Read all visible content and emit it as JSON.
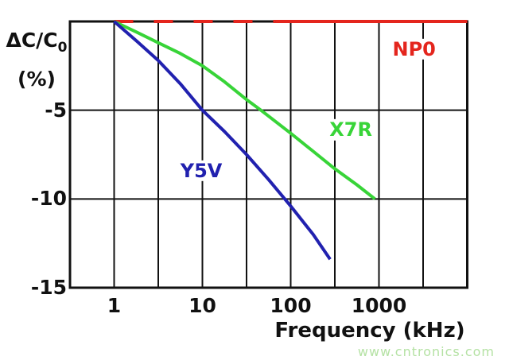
{
  "chart_data": {
    "type": "line",
    "title": "",
    "xlabel": "Frequency (kHz)",
    "ylabel_main": "ΔC/C",
    "ylabel_sub": "0",
    "ylabel_unit": "(%)",
    "x_scale": "log",
    "x_range": [
      0.3162,
      10000
    ],
    "y_range": [
      -15,
      0
    ],
    "x_ticks": [
      {
        "value": 1,
        "label": "1"
      },
      {
        "value": 10,
        "label": "10"
      },
      {
        "value": 100,
        "label": "100"
      },
      {
        "value": 1000,
        "label": "1000"
      }
    ],
    "y_ticks": [
      {
        "value": -5,
        "label": "-5"
      },
      {
        "value": -10,
        "label": "-10"
      },
      {
        "value": -15,
        "label": "-15"
      }
    ],
    "x_gridlines": [
      0.3162,
      1,
      3.162,
      10,
      31.62,
      100,
      316.2,
      1000,
      3162,
      10000
    ],
    "y_gridlines": [
      0,
      -5,
      -10,
      -15
    ],
    "grid_color": "#111111",
    "series": [
      {
        "name": "NP0",
        "color": "#e4251d",
        "width": 4,
        "label_at": [
          2500,
          -1.55
        ],
        "parts": [
          {
            "x": [
              1,
              68
            ],
            "y": [
              0,
              0
            ],
            "dash": "24 26"
          },
          {
            "x": [
              68,
              10000
            ],
            "y": [
              0,
              0
            ]
          }
        ]
      },
      {
        "name": "X7R",
        "color": "#38d438",
        "width": 4,
        "label_at": [
          480,
          -6.1
        ],
        "parts": [
          {
            "x": [
              1,
              1.8,
              3.16,
              5.6,
              10,
              17.8,
              31.6,
              46,
              100,
              178,
              316,
              562,
              900
            ],
            "y": [
              0,
              -0.6,
              -1.2,
              -1.8,
              -2.5,
              -3.4,
              -4.4,
              -5.0,
              -6.3,
              -7.3,
              -8.3,
              -9.2,
              -10.0
            ]
          }
        ]
      },
      {
        "name": "Y5V",
        "color": "#2121af",
        "width": 4,
        "label_at": [
          9.7,
          -8.4
        ],
        "parts": [
          {
            "x": [
              1,
              1.8,
              3.16,
              5.6,
              10,
              17.8,
              31.6,
              56,
              100,
              180,
              280
            ],
            "y": [
              0,
              -1.1,
              -2.2,
              -3.5,
              -5.0,
              -6.2,
              -7.5,
              -8.9,
              -10.4,
              -12.0,
              -13.4
            ]
          }
        ]
      }
    ]
  },
  "watermark": {
    "text": "www.cntronics.com",
    "color": "#b5e2a4"
  }
}
